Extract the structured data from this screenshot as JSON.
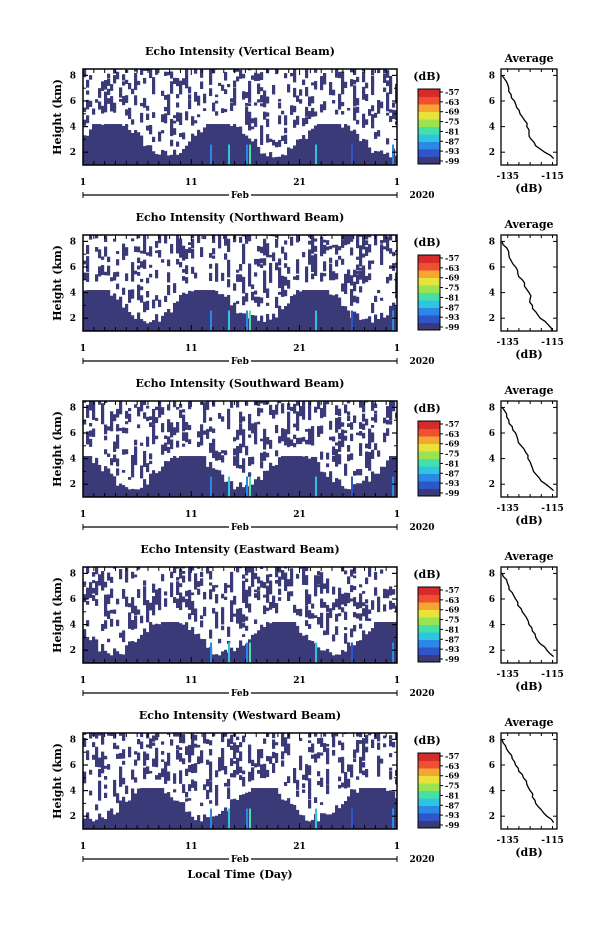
{
  "figure": {
    "bottom_xlabel": "Local Time (Day)",
    "ylabel": "Height (km)",
    "x_ticks": [
      "1",
      "11",
      "21",
      "1"
    ],
    "month_label": "Feb",
    "year_label": "2020",
    "y_ticks": [
      "2",
      "4",
      "6",
      "8"
    ],
    "colorbar_unit": "(dB)",
    "colorbar_ticks": [
      "-57",
      "-63",
      "-69",
      "-75",
      "-81",
      "-87",
      "-93",
      "-99"
    ],
    "colorbar_colors": [
      "#3b3a78",
      "#2f55c9",
      "#2a88e6",
      "#2fc4e0",
      "#45e0a6",
      "#9be451",
      "#e8e23a",
      "#f6a533",
      "#ee5030",
      "#d62b2b"
    ],
    "avg_title": "Average",
    "avg_xlabel": "(dB)",
    "avg_x_ticks": [
      "-135",
      "-115"
    ],
    "avg_y_ticks": [
      "2",
      "4",
      "6",
      "8"
    ],
    "fill_color": "#3b3a78"
  },
  "chart_data": [
    {
      "type": "heatmap",
      "title": "Echo Intensity (Vertical Beam)",
      "ylabel": "Height (km)",
      "ylim": [
        1,
        8.5
      ],
      "colorbar_range": [
        -99,
        -57
      ],
      "average_profile": {
        "title": "Average",
        "xlabel": "(dB)",
        "xlim": [
          -138,
          -113
        ],
        "ylim": [
          1,
          8.5
        ],
        "height_km": [
          1.5,
          2.0,
          2.5,
          3.0,
          3.5,
          4.0,
          4.5,
          5.0,
          5.5,
          6.0,
          6.5,
          7.0,
          7.5,
          8.0
        ],
        "value_db": [
          -114.5,
          -118.5,
          -122.5,
          -124.5,
          -125.5,
          -126.5,
          -127.5,
          -129.5,
          -131.0,
          -132.0,
          -133.5,
          -134.5,
          -135.5,
          -137.5
        ]
      }
    },
    {
      "type": "heatmap",
      "title": "Echo Intensity (Northward Beam)",
      "ylabel": "Height (km)",
      "ylim": [
        1,
        8.5
      ],
      "colorbar_range": [
        -99,
        -57
      ],
      "average_profile": {
        "title": "Average",
        "xlabel": "(dB)",
        "xlim": [
          -138,
          -113
        ],
        "ylim": [
          1,
          8.5
        ],
        "height_km": [
          1.0,
          1.5,
          2.0,
          2.5,
          3.0,
          3.5,
          4.0,
          4.5,
          5.0,
          5.5,
          6.0,
          6.5,
          7.0,
          7.5,
          8.0
        ],
        "value_db": [
          -115.0,
          -117.0,
          -120.5,
          -122.5,
          -124.0,
          -125.0,
          -125.5,
          -127.5,
          -128.5,
          -130.5,
          -131.5,
          -133.5,
          -134.5,
          -135.5,
          -137.5
        ]
      }
    },
    {
      "type": "heatmap",
      "title": "Echo Intensity (Southward Beam)",
      "ylabel": "Height (km)",
      "ylim": [
        1,
        8.5
      ],
      "colorbar_range": [
        -99,
        -57
      ],
      "average_profile": {
        "title": "Average",
        "xlabel": "(dB)",
        "xlim": [
          -138,
          -113
        ],
        "ylim": [
          1,
          8.5
        ],
        "height_km": [
          1.5,
          2.0,
          2.5,
          3.0,
          3.5,
          4.0,
          4.5,
          5.0,
          5.5,
          6.0,
          6.5,
          7.0,
          7.5,
          8.0
        ],
        "value_db": [
          -114.5,
          -118.0,
          -121.0,
          -123.5,
          -124.5,
          -126.0,
          -127.0,
          -129.0,
          -130.5,
          -131.5,
          -133.0,
          -134.5,
          -135.5,
          -137.5
        ]
      }
    },
    {
      "type": "heatmap",
      "title": "Echo Intensity (Eastward Beam)",
      "ylabel": "Height (km)",
      "ylim": [
        1,
        8.5
      ],
      "colorbar_range": [
        -99,
        -57
      ],
      "average_profile": {
        "title": "Average",
        "xlabel": "(dB)",
        "xlim": [
          -138,
          -113
        ],
        "ylim": [
          1,
          8.5
        ],
        "height_km": [
          1.5,
          2.0,
          2.5,
          3.0,
          3.5,
          4.0,
          4.5,
          5.0,
          5.5,
          6.0,
          6.5,
          7.0,
          7.5,
          8.0
        ],
        "value_db": [
          -114.5,
          -117.5,
          -120.5,
          -122.5,
          -124.0,
          -125.5,
          -126.5,
          -128.5,
          -130.5,
          -131.5,
          -133.0,
          -134.5,
          -135.5,
          -137.5
        ]
      }
    },
    {
      "type": "heatmap",
      "title": "Echo Intensity (Westward Beam)",
      "xlabel": "Local Time (Day)",
      "ylabel": "Height (km)",
      "ylim": [
        1,
        8.5
      ],
      "colorbar_range": [
        -99,
        -57
      ],
      "average_profile": {
        "title": "Average",
        "xlabel": "(dB)",
        "xlim": [
          -138,
          -113
        ],
        "ylim": [
          1,
          8.5
        ],
        "height_km": [
          1.5,
          2.0,
          2.5,
          3.0,
          3.5,
          4.0,
          4.5,
          5.0,
          5.5,
          6.0,
          6.5,
          7.0,
          7.5,
          8.0
        ],
        "value_db": [
          -114.5,
          -117.5,
          -120.0,
          -122.5,
          -124.0,
          -125.0,
          -126.5,
          -128.0,
          -130.0,
          -131.5,
          -133.0,
          -134.5,
          -136.0,
          -137.5
        ]
      }
    }
  ]
}
